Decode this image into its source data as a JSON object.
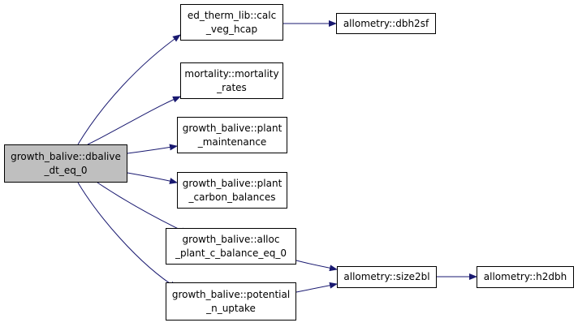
{
  "colors": {
    "edge": "#191970",
    "root_fill": "#bfbfbf",
    "node_fill": "#ffffff",
    "border": "#000000"
  },
  "nodes": {
    "dbalive": [
      "growth_balive::dbalive",
      "_dt_eq_0"
    ],
    "calc_veg_hcap": [
      "ed_therm_lib::calc",
      "_veg_hcap"
    ],
    "dbh2sf": [
      "allometry::dbh2sf"
    ],
    "mortality_rates": [
      "mortality::mortality",
      "_rates"
    ],
    "plant_maintenance": [
      "growth_balive::plant",
      "_maintenance"
    ],
    "plant_carbon_balances": [
      "growth_balive::plant",
      "_carbon_balances"
    ],
    "alloc_plant_c_balance": [
      "growth_balive::alloc",
      "_plant_c_balance_eq_0"
    ],
    "potential_n_uptake": [
      "growth_balive::potential",
      "_n_uptake"
    ],
    "size2bl": [
      "allometry::size2bl"
    ],
    "h2dbh": [
      "allometry::h2dbh"
    ]
  },
  "edges": [
    {
      "from": "dbalive",
      "to": "calc_veg_hcap"
    },
    {
      "from": "dbalive",
      "to": "mortality_rates"
    },
    {
      "from": "dbalive",
      "to": "plant_maintenance"
    },
    {
      "from": "dbalive",
      "to": "plant_carbon_balances"
    },
    {
      "from": "dbalive",
      "to": "alloc_plant_c_balance"
    },
    {
      "from": "dbalive",
      "to": "potential_n_uptake"
    },
    {
      "from": "calc_veg_hcap",
      "to": "dbh2sf"
    },
    {
      "from": "alloc_plant_c_balance",
      "to": "size2bl"
    },
    {
      "from": "potential_n_uptake",
      "to": "size2bl"
    },
    {
      "from": "size2bl",
      "to": "h2dbh"
    }
  ]
}
